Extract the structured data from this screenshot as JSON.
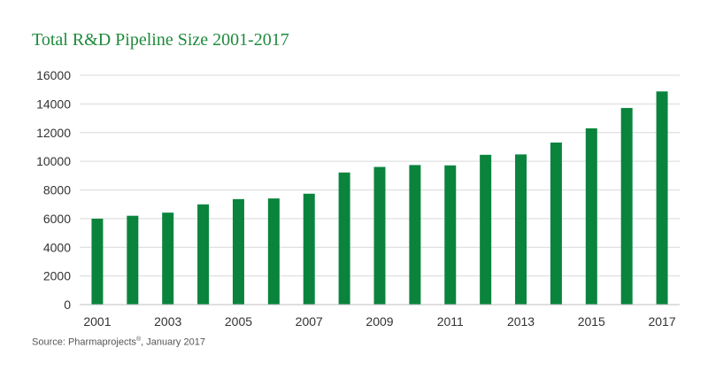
{
  "chart_data": {
    "type": "bar",
    "title": "Total R&D Pipeline Size 2001-2017",
    "categories": [
      "2001",
      "2002",
      "2003",
      "2004",
      "2005",
      "2006",
      "2007",
      "2008",
      "2009",
      "2010",
      "2011",
      "2012",
      "2013",
      "2014",
      "2015",
      "2016",
      "2017"
    ],
    "values": [
      5995,
      6198,
      6416,
      6994,
      7360,
      7406,
      7737,
      9217,
      9605,
      9737,
      9713,
      10452,
      10479,
      11307,
      12300,
      13718,
      14872
    ],
    "x_tick_labels": [
      "2001",
      "2003",
      "2005",
      "2007",
      "2009",
      "2011",
      "2013",
      "2015",
      "2017"
    ],
    "y_ticks": [
      "0",
      "2000",
      "4000",
      "6000",
      "8000",
      "10000",
      "12000",
      "14000",
      "16000"
    ],
    "ylim": [
      0,
      16000
    ],
    "xlabel": "",
    "ylabel": "",
    "grid": true,
    "bar_color": "#0a843d"
  },
  "source": {
    "prefix": "Source: Pharmaprojects",
    "sup": "®",
    "suffix": ", January 2017"
  }
}
